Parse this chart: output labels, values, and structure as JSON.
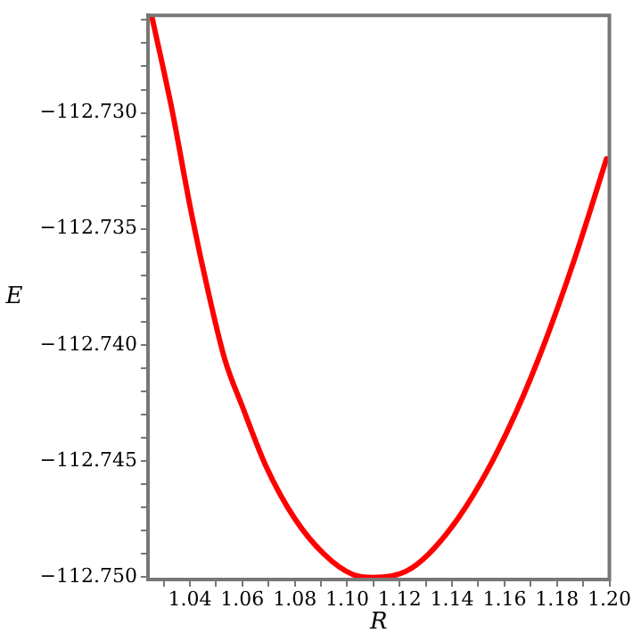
{
  "chart_data": {
    "type": "line",
    "xlabel": "R",
    "ylabel": "E",
    "x": [
      1.0255,
      1.0333,
      1.04,
      1.0467,
      1.0533,
      1.06,
      1.0689,
      1.08,
      1.0911,
      1.1022,
      1.11,
      1.1222,
      1.1311,
      1.1422,
      1.1533,
      1.1644,
      1.1755,
      1.1867,
      1.1989
    ],
    "series": [
      {
        "color": "#ff0000",
        "values": [
          -112.72586,
          -112.72995,
          -112.734,
          -112.73757,
          -112.74062,
          -112.74265,
          -112.74519,
          -112.74748,
          -112.749,
          -112.74989,
          -112.75001,
          -112.74976,
          -112.749,
          -112.74748,
          -112.74544,
          -112.7429,
          -112.73985,
          -112.7363,
          -112.73198
        ]
      }
    ],
    "xlim": [
      1.024,
      1.2
    ],
    "ylim": [
      -112.7501,
      -112.7258
    ],
    "xticks": [
      {
        "value": 1.03,
        "label": null
      },
      {
        "value": 1.04,
        "label": "1.04"
      },
      {
        "value": 1.05,
        "label": null
      },
      {
        "value": 1.06,
        "label": "1.06"
      },
      {
        "value": 1.07,
        "label": null
      },
      {
        "value": 1.08,
        "label": "1.08"
      },
      {
        "value": 1.09,
        "label": null
      },
      {
        "value": 1.1,
        "label": "1.10"
      },
      {
        "value": 1.11,
        "label": null
      },
      {
        "value": 1.12,
        "label": "1.12"
      },
      {
        "value": 1.13,
        "label": null
      },
      {
        "value": 1.14,
        "label": "1.14"
      },
      {
        "value": 1.15,
        "label": null
      },
      {
        "value": 1.16,
        "label": "1.16"
      },
      {
        "value": 1.17,
        "label": null
      },
      {
        "value": 1.18,
        "label": "1.18"
      },
      {
        "value": 1.19,
        "label": null
      },
      {
        "value": 1.2,
        "label": "1.20"
      }
    ],
    "yticks": [
      {
        "value": -112.75,
        "label": "−112.750"
      },
      {
        "value": -112.749,
        "label": null
      },
      {
        "value": -112.748,
        "label": null
      },
      {
        "value": -112.747,
        "label": null
      },
      {
        "value": -112.746,
        "label": null
      },
      {
        "value": -112.745,
        "label": "−112.745"
      },
      {
        "value": -112.744,
        "label": null
      },
      {
        "value": -112.743,
        "label": null
      },
      {
        "value": -112.742,
        "label": null
      },
      {
        "value": -112.741,
        "label": null
      },
      {
        "value": -112.74,
        "label": "−112.740"
      },
      {
        "value": -112.739,
        "label": null
      },
      {
        "value": -112.738,
        "label": null
      },
      {
        "value": -112.737,
        "label": null
      },
      {
        "value": -112.736,
        "label": null
      },
      {
        "value": -112.735,
        "label": "−112.735"
      },
      {
        "value": -112.734,
        "label": null
      },
      {
        "value": -112.733,
        "label": null
      },
      {
        "value": -112.732,
        "label": null
      },
      {
        "value": -112.731,
        "label": null
      },
      {
        "value": -112.73,
        "label": "−112.730"
      },
      {
        "value": -112.729,
        "label": null
      },
      {
        "value": -112.728,
        "label": null
      },
      {
        "value": -112.727,
        "label": null
      },
      {
        "value": -112.726,
        "label": null
      }
    ],
    "grid": false,
    "legend": false,
    "marker": "none",
    "line_style": "solid"
  }
}
